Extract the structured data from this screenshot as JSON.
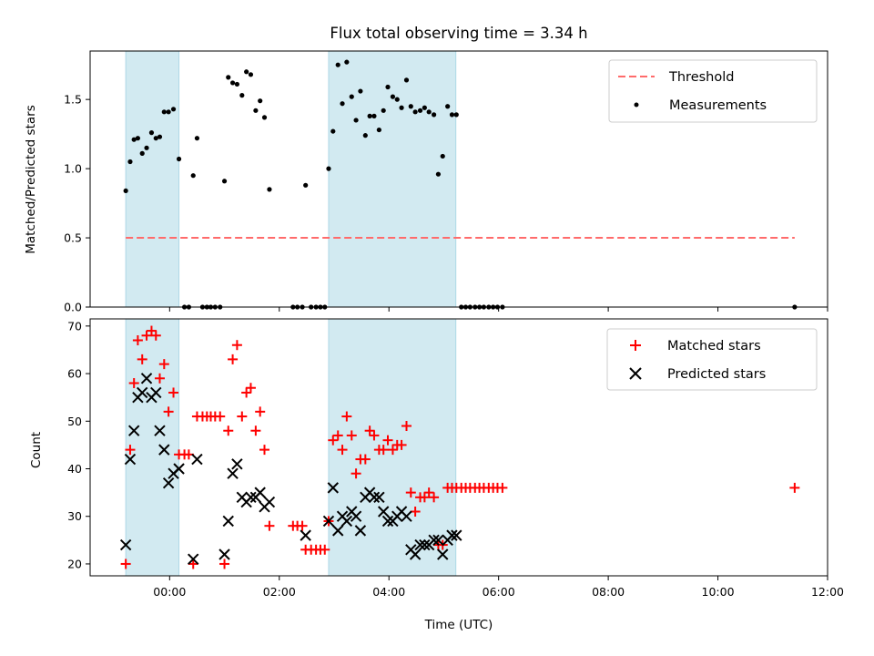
{
  "chart_data": [
    {
      "type": "scatter",
      "panel": "top",
      "title": "Flux total observing time = 3.34 h",
      "xlabel": "",
      "ylabel": "Matched/Predicted stars",
      "xunit": "hours UTC",
      "xlim": [
        -1.45,
        12.0
      ],
      "ylim": [
        0.0,
        1.85
      ],
      "yticks": [
        "0.0",
        "0.5",
        "1.0",
        "1.5"
      ],
      "ytick_values": [
        0.0,
        0.5,
        1.0,
        1.5
      ],
      "shaded_regions": [
        [
          -0.8,
          0.17
        ],
        [
          2.9,
          5.22
        ]
      ],
      "shade_color": "#add8e6",
      "threshold": {
        "name": "Threshold",
        "value": 0.5,
        "x_range": [
          -0.8,
          11.4
        ],
        "color": "#ff6b6b"
      },
      "series": [
        {
          "name": "Measurements",
          "color": "#000000",
          "points": [
            [
              -0.8,
              0.84
            ],
            [
              -0.72,
              1.05
            ],
            [
              -0.65,
              1.21
            ],
            [
              -0.58,
              1.22
            ],
            [
              -0.5,
              1.11
            ],
            [
              -0.42,
              1.15
            ],
            [
              -0.33,
              1.26
            ],
            [
              -0.25,
              1.22
            ],
            [
              -0.18,
              1.23
            ],
            [
              -0.1,
              1.41
            ],
            [
              -0.02,
              1.41
            ],
            [
              0.07,
              1.43
            ],
            [
              0.17,
              1.07
            ],
            [
              0.27,
              0.0
            ],
            [
              0.35,
              0.0
            ],
            [
              0.43,
              0.95
            ],
            [
              0.5,
              1.22
            ],
            [
              0.6,
              0.0
            ],
            [
              0.68,
              0.0
            ],
            [
              0.75,
              0.0
            ],
            [
              0.83,
              0.0
            ],
            [
              0.92,
              0.0
            ],
            [
              1.0,
              0.91
            ],
            [
              1.07,
              1.66
            ],
            [
              1.15,
              1.62
            ],
            [
              1.23,
              1.61
            ],
            [
              1.32,
              1.53
            ],
            [
              1.4,
              1.7
            ],
            [
              1.48,
              1.68
            ],
            [
              1.57,
              1.42
            ],
            [
              1.65,
              1.49
            ],
            [
              1.73,
              1.37
            ],
            [
              1.82,
              0.85
            ],
            [
              2.25,
              0.0
            ],
            [
              2.33,
              0.0
            ],
            [
              2.42,
              0.0
            ],
            [
              2.48,
              0.88
            ],
            [
              2.58,
              0.0
            ],
            [
              2.67,
              0.0
            ],
            [
              2.75,
              0.0
            ],
            [
              2.83,
              0.0
            ],
            [
              2.9,
              1.0
            ],
            [
              2.98,
              1.27
            ],
            [
              3.07,
              1.75
            ],
            [
              3.15,
              1.47
            ],
            [
              3.23,
              1.77
            ],
            [
              3.32,
              1.52
            ],
            [
              3.4,
              1.35
            ],
            [
              3.48,
              1.56
            ],
            [
              3.57,
              1.24
            ],
            [
              3.65,
              1.38
            ],
            [
              3.73,
              1.38
            ],
            [
              3.82,
              1.28
            ],
            [
              3.9,
              1.42
            ],
            [
              3.98,
              1.59
            ],
            [
              4.07,
              1.52
            ],
            [
              4.15,
              1.5
            ],
            [
              4.23,
              1.44
            ],
            [
              4.32,
              1.64
            ],
            [
              4.4,
              1.45
            ],
            [
              4.48,
              1.41
            ],
            [
              4.57,
              1.42
            ],
            [
              4.65,
              1.44
            ],
            [
              4.73,
              1.41
            ],
            [
              4.82,
              1.39
            ],
            [
              4.9,
              0.96
            ],
            [
              4.98,
              1.09
            ],
            [
              5.07,
              1.45
            ],
            [
              5.15,
              1.39
            ],
            [
              5.23,
              1.39
            ],
            [
              5.32,
              0.0
            ],
            [
              5.4,
              0.0
            ],
            [
              5.48,
              0.0
            ],
            [
              5.57,
              0.0
            ],
            [
              5.65,
              0.0
            ],
            [
              5.73,
              0.0
            ],
            [
              5.82,
              0.0
            ],
            [
              5.9,
              0.0
            ],
            [
              5.98,
              0.0
            ],
            [
              6.07,
              0.0
            ],
            [
              11.4,
              0.0
            ]
          ]
        }
      ],
      "legend": {
        "placement": "top-right",
        "entries": [
          "Threshold",
          "Measurements"
        ]
      }
    },
    {
      "type": "scatter",
      "panel": "bottom",
      "title": "",
      "xlabel": "Time (UTC)",
      "ylabel": "Count",
      "xlim": [
        -1.45,
        12.0
      ],
      "ylim": [
        17.5,
        71.5
      ],
      "xticks": [
        "00:00",
        "02:00",
        "04:00",
        "06:00",
        "08:00",
        "10:00",
        "12:00"
      ],
      "xtick_values": [
        0,
        2,
        4,
        6,
        8,
        10,
        12
      ],
      "yticks": [
        "20",
        "30",
        "40",
        "50",
        "60",
        "70"
      ],
      "ytick_values": [
        20,
        30,
        40,
        50,
        60,
        70
      ],
      "shaded_regions": [
        [
          -0.8,
          0.17
        ],
        [
          2.9,
          5.22
        ]
      ],
      "series": [
        {
          "name": "Matched stars",
          "marker": "plus",
          "color": "#ff0000",
          "points": [
            [
              -0.8,
              20
            ],
            [
              -0.72,
              44
            ],
            [
              -0.65,
              58
            ],
            [
              -0.58,
              67
            ],
            [
              -0.5,
              63
            ],
            [
              -0.42,
              68
            ],
            [
              -0.33,
              69
            ],
            [
              -0.25,
              68
            ],
            [
              -0.18,
              59
            ],
            [
              -0.1,
              62
            ],
            [
              -0.02,
              52
            ],
            [
              0.07,
              56
            ],
            [
              0.17,
              43
            ],
            [
              0.27,
              43
            ],
            [
              0.35,
              43
            ],
            [
              0.43,
              20
            ],
            [
              0.5,
              51
            ],
            [
              0.6,
              51
            ],
            [
              0.68,
              51
            ],
            [
              0.75,
              51
            ],
            [
              0.83,
              51
            ],
            [
              0.92,
              51
            ],
            [
              1.0,
              20
            ],
            [
              1.07,
              48
            ],
            [
              1.15,
              63
            ],
            [
              1.23,
              66
            ],
            [
              1.32,
              51
            ],
            [
              1.4,
              56
            ],
            [
              1.48,
              57
            ],
            [
              1.57,
              48
            ],
            [
              1.65,
              52
            ],
            [
              1.73,
              44
            ],
            [
              1.82,
              28
            ],
            [
              2.25,
              28
            ],
            [
              2.33,
              28
            ],
            [
              2.42,
              28
            ],
            [
              2.48,
              23
            ],
            [
              2.58,
              23
            ],
            [
              2.67,
              23
            ],
            [
              2.75,
              23
            ],
            [
              2.83,
              23
            ],
            [
              2.9,
              29
            ],
            [
              2.98,
              46
            ],
            [
              3.07,
              47
            ],
            [
              3.15,
              44
            ],
            [
              3.23,
              51
            ],
            [
              3.32,
              47
            ],
            [
              3.4,
              39
            ],
            [
              3.48,
              42
            ],
            [
              3.57,
              42
            ],
            [
              3.65,
              48
            ],
            [
              3.73,
              47
            ],
            [
              3.82,
              44
            ],
            [
              3.9,
              44
            ],
            [
              3.98,
              46
            ],
            [
              4.07,
              44
            ],
            [
              4.15,
              45
            ],
            [
              4.23,
              45
            ],
            [
              4.32,
              49
            ],
            [
              4.4,
              35
            ],
            [
              4.48,
              31
            ],
            [
              4.57,
              34
            ],
            [
              4.65,
              34
            ],
            [
              4.73,
              35
            ],
            [
              4.82,
              34
            ],
            [
              4.9,
              24
            ],
            [
              4.98,
              24
            ],
            [
              5.07,
              36
            ],
            [
              5.15,
              36
            ],
            [
              5.23,
              36
            ],
            [
              5.32,
              36
            ],
            [
              5.4,
              36
            ],
            [
              5.48,
              36
            ],
            [
              5.57,
              36
            ],
            [
              5.65,
              36
            ],
            [
              5.73,
              36
            ],
            [
              5.82,
              36
            ],
            [
              5.9,
              36
            ],
            [
              5.98,
              36
            ],
            [
              6.07,
              36
            ],
            [
              11.4,
              36
            ]
          ]
        },
        {
          "name": "Predicted stars",
          "marker": "x",
          "color": "#000000",
          "points": [
            [
              -0.8,
              24
            ],
            [
              -0.72,
              42
            ],
            [
              -0.65,
              48
            ],
            [
              -0.58,
              55
            ],
            [
              -0.5,
              56
            ],
            [
              -0.42,
              59
            ],
            [
              -0.33,
              55
            ],
            [
              -0.25,
              56
            ],
            [
              -0.18,
              48
            ],
            [
              -0.1,
              44
            ],
            [
              -0.02,
              37
            ],
            [
              0.07,
              39
            ],
            [
              0.17,
              40
            ],
            [
              0.43,
              21
            ],
            [
              0.5,
              42
            ],
            [
              1.0,
              22
            ],
            [
              1.07,
              29
            ],
            [
              1.15,
              39
            ],
            [
              1.23,
              41
            ],
            [
              1.32,
              34
            ],
            [
              1.4,
              33
            ],
            [
              1.48,
              34
            ],
            [
              1.57,
              34
            ],
            [
              1.65,
              35
            ],
            [
              1.73,
              32
            ],
            [
              1.82,
              33
            ],
            [
              2.48,
              26
            ],
            [
              2.9,
              29
            ],
            [
              2.98,
              36
            ],
            [
              3.07,
              27
            ],
            [
              3.15,
              30
            ],
            [
              3.23,
              29
            ],
            [
              3.32,
              31
            ],
            [
              3.4,
              30
            ],
            [
              3.48,
              27
            ],
            [
              3.57,
              34
            ],
            [
              3.65,
              35
            ],
            [
              3.73,
              34
            ],
            [
              3.82,
              34
            ],
            [
              3.9,
              31
            ],
            [
              3.98,
              29
            ],
            [
              4.07,
              29
            ],
            [
              4.15,
              30
            ],
            [
              4.23,
              31
            ],
            [
              4.32,
              30
            ],
            [
              4.4,
              23
            ],
            [
              4.48,
              22
            ],
            [
              4.57,
              24
            ],
            [
              4.65,
              24
            ],
            [
              4.73,
              24
            ],
            [
              4.82,
              25
            ],
            [
              4.9,
              25
            ],
            [
              4.98,
              22
            ],
            [
              5.07,
              25
            ],
            [
              5.15,
              26
            ],
            [
              5.23,
              26
            ]
          ]
        }
      ],
      "legend": {
        "placement": "top-right",
        "entries": [
          "Matched stars",
          "Predicted stars"
        ]
      }
    }
  ]
}
